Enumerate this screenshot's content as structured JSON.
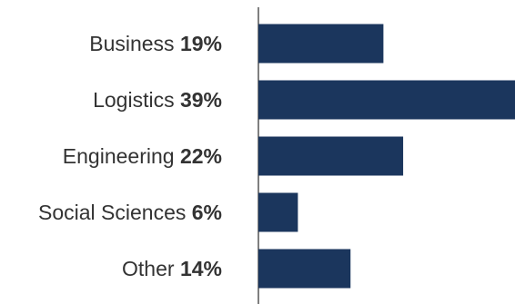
{
  "chart_data": {
    "type": "bar",
    "orientation": "horizontal",
    "categories": [
      "Business",
      "Logistics",
      "Engineering",
      "Social Sciences",
      "Other"
    ],
    "values": [
      19,
      39,
      22,
      6,
      14
    ],
    "value_labels": [
      "19%",
      "39%",
      "22%",
      "6%",
      "14%"
    ],
    "xlim": [
      0,
      39
    ],
    "grid": false,
    "legend": "none",
    "bar_color": "#1b365d",
    "axis_color": "#555555",
    "label_color": "#333333"
  }
}
